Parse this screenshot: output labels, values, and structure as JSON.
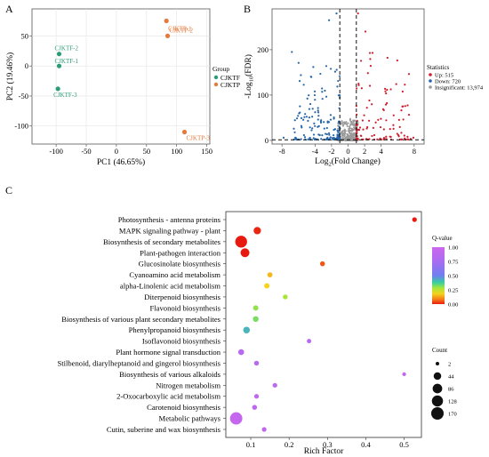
{
  "panel_labels": [
    "A",
    "B",
    "C"
  ],
  "chart_data": [
    {
      "type": "scatter",
      "xlabel": "PC1 (46.65%)",
      "ylabel": "PC2 (19.46%)",
      "xlim": [
        -140,
        155
      ],
      "ylim": [
        -130,
        95
      ],
      "xticks": [
        "-100",
        "-50",
        "0",
        "50",
        "100",
        "150"
      ],
      "xtick_values": [
        -100,
        -50,
        0,
        50,
        100,
        150
      ],
      "yticks": [
        "50",
        "0",
        "-50",
        "-100"
      ],
      "ytick_values": [
        50,
        0,
        -50,
        -100
      ],
      "grid": true,
      "legend": {
        "title": "Group",
        "placement": "right"
      },
      "series": [
        {
          "name": "CJKTF",
          "color": "#2a9d78",
          "points": [
            {
              "label": "CJKTF-2",
              "x": -95,
              "y": 20
            },
            {
              "label": "CJKTF-1",
              "x": -95,
              "y": 0
            },
            {
              "label": "CJKTF-3",
              "x": -97,
              "y": -38
            }
          ]
        },
        {
          "name": "CJKTP",
          "color": "#e67a3b",
          "points": [
            {
              "label": "CJKTP-1",
              "x": 83,
              "y": 75
            },
            {
              "label": "CJKTP-2",
              "x": 85,
              "y": 50
            },
            {
              "label": "CJKTP-3",
              "x": 113,
              "y": -110
            }
          ]
        }
      ]
    },
    {
      "type": "scatter",
      "subtype": "volcano",
      "xlabel_main": "Log",
      "xlabel_sub": "2",
      "xlabel_rest": "(Fold Change)",
      "ylabel_pre": "-Log",
      "ylabel_sub": "10",
      "ylabel_rest": "(FDR)",
      "xlim": [
        -9.2,
        9.2
      ],
      "ylim": [
        -8,
        290
      ],
      "xticks": [
        "-8",
        "-4",
        "-2",
        "0",
        "2",
        "4",
        "8"
      ],
      "xtick_values": [
        -8,
        -4,
        -2,
        0,
        2,
        4,
        8
      ],
      "yticks": [
        "200",
        "100",
        "0"
      ],
      "ytick_values": [
        200,
        100,
        0
      ],
      "thresholds_x": [
        -1,
        1
      ],
      "threshold_y": 1.3,
      "legend": {
        "title": "Statistics",
        "placement": "right",
        "items": [
          {
            "label": "Up: 515",
            "color": "#cc1f2f"
          },
          {
            "label": "Down: 720",
            "color": "#2766a8"
          },
          {
            "label": "Insignificant: 13,974",
            "color": "#9a9a9a"
          }
        ]
      },
      "counts": {
        "up": 515,
        "down": 720,
        "insignificant": 13974
      }
    },
    {
      "type": "scatter",
      "subtype": "bubble",
      "xlabel": "Rich Factor",
      "xlim": [
        0.035,
        0.545
      ],
      "xticks": [
        "0.1",
        "0.2",
        "0.3",
        "0.4",
        "0.5"
      ],
      "xtick_values": [
        0.1,
        0.2,
        0.3,
        0.4,
        0.5
      ],
      "color_legend": {
        "title": "Q-value",
        "ticks": [
          "1.00",
          "0.75",
          "0.50",
          "0.25",
          "0.00"
        ],
        "tick_values": [
          1.0,
          0.75,
          0.5,
          0.25,
          0.0
        ],
        "placement": "right"
      },
      "size_legend": {
        "title": "Count",
        "values": [
          2,
          44,
          86,
          128,
          170
        ],
        "placement": "right"
      },
      "categories": [
        "Photosynthesis - antenna proteins",
        "MAPK signaling pathway - plant",
        "Biosynthesis of secondary metabolites",
        "Plant-pathogen interaction",
        "Glucosinolate biosynthesis",
        "Cyanoamino acid metabolism",
        "alpha-Linolenic acid metabolism",
        "Diterpenoid biosynthesis",
        "Flavonoid biosynthesis",
        "Biosynthesis of various plant secondary metabolites",
        "Phenylpropanoid biosynthesis",
        "Isoflavonoid biosynthesis",
        "Plant hormone signal transduction",
        "Stilbenoid, diarylheptanoid and gingerol biosynthesis",
        "Biosynthesis of various alkaloids",
        "Nitrogen metabolism",
        "2-Oxocarboxylic acid metabolism",
        "Carotenoid biosynthesis",
        "Metabolic pathways",
        "Cutin, suberine and wax biosynthesis"
      ],
      "points": [
        {
          "rich": 0.527,
          "q": 0.0,
          "count": 8
        },
        {
          "rich": 0.117,
          "q": 0.01,
          "count": 40
        },
        {
          "rich": 0.075,
          "q": 0.0,
          "count": 150
        },
        {
          "rich": 0.085,
          "q": 0.0,
          "count": 70
        },
        {
          "rich": 0.287,
          "q": 0.05,
          "count": 10
        },
        {
          "rich": 0.15,
          "q": 0.15,
          "count": 12
        },
        {
          "rich": 0.142,
          "q": 0.18,
          "count": 14
        },
        {
          "rich": 0.19,
          "q": 0.28,
          "count": 10
        },
        {
          "rich": 0.113,
          "q": 0.3,
          "count": 14
        },
        {
          "rich": 0.113,
          "q": 0.32,
          "count": 18
        },
        {
          "rich": 0.089,
          "q": 0.42,
          "count": 30
        },
        {
          "rich": 0.252,
          "q": 0.85,
          "count": 6
        },
        {
          "rich": 0.075,
          "q": 0.85,
          "count": 20
        },
        {
          "rich": 0.115,
          "q": 0.85,
          "count": 10
        },
        {
          "rich": 0.5,
          "q": 0.9,
          "count": 3
        },
        {
          "rich": 0.163,
          "q": 0.88,
          "count": 8
        },
        {
          "rich": 0.115,
          "q": 0.92,
          "count": 8
        },
        {
          "rich": 0.11,
          "q": 0.9,
          "count": 10
        },
        {
          "rich": 0.062,
          "q": 0.95,
          "count": 165
        },
        {
          "rich": 0.135,
          "q": 0.92,
          "count": 8
        }
      ]
    }
  ]
}
